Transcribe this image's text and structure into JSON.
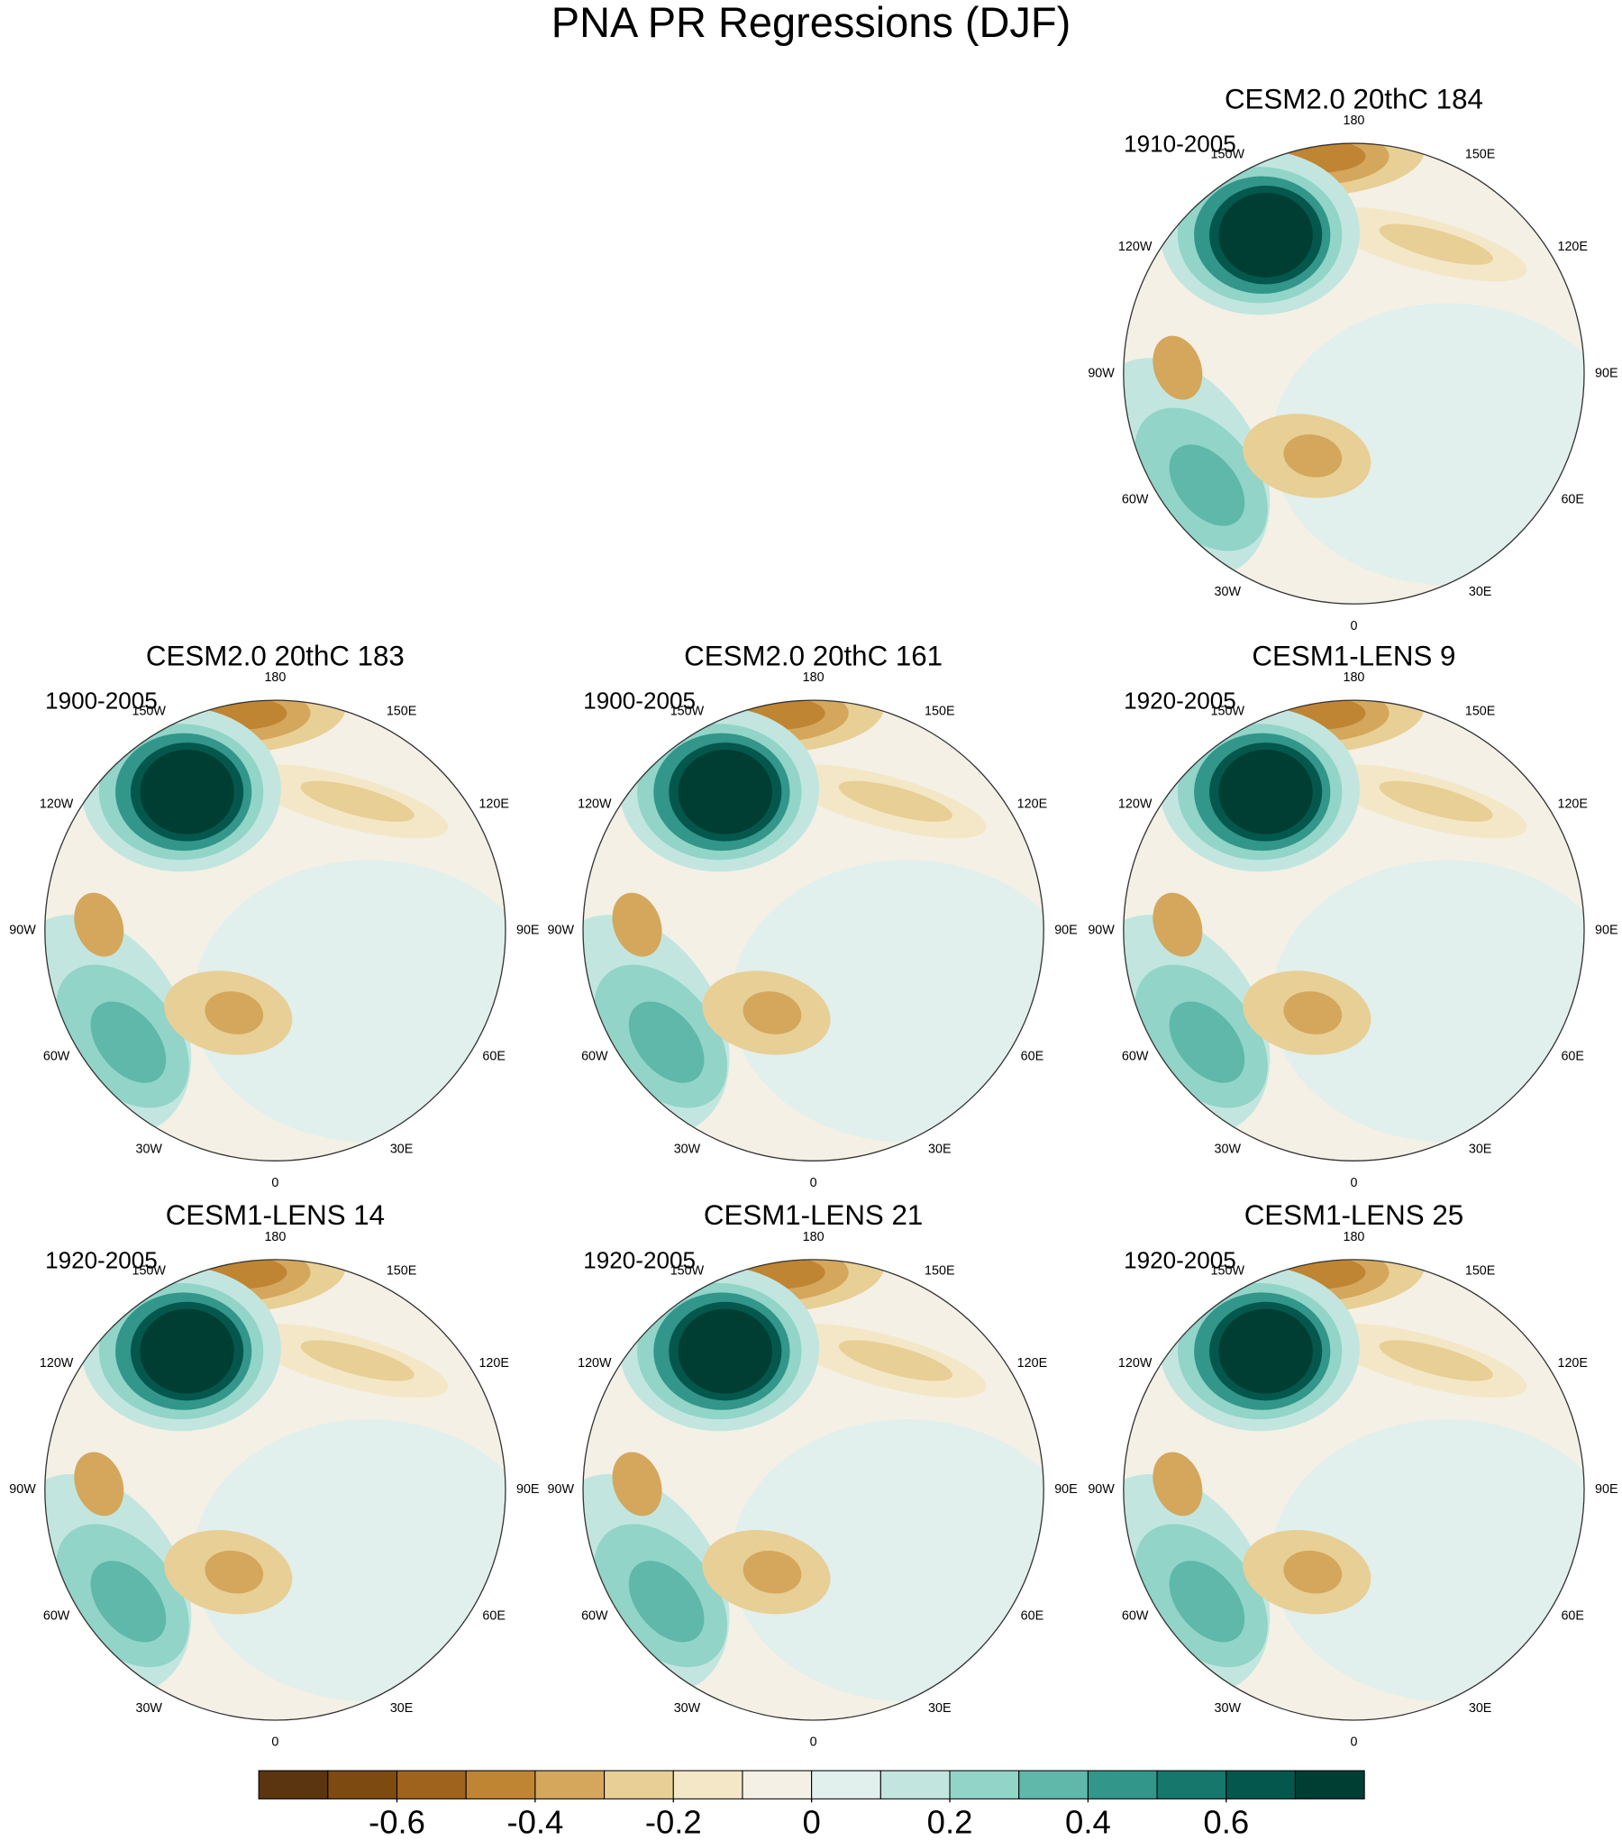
{
  "title": "PNA PR Regressions (DJF)",
  "lon_labels": [
    "180",
    "150E",
    "120E",
    "90E",
    "60E",
    "30E",
    "0",
    "30W",
    "60W",
    "90W",
    "120W",
    "150W"
  ],
  "panels": [
    {
      "title": "CESM2.0 20thC 184",
      "period": "1910-2005"
    },
    {
      "title": "CESM2.0 20thC 183",
      "period": "1900-2005"
    },
    {
      "title": "CESM2.0 20thC 161",
      "period": "1900-2005"
    },
    {
      "title": "CESM1-LENS 9",
      "period": "1920-2005"
    },
    {
      "title": "CESM1-LENS 14",
      "period": "1920-2005"
    },
    {
      "title": "CESM1-LENS 21",
      "period": "1920-2005"
    },
    {
      "title": "CESM1-LENS 25",
      "period": "1920-2005"
    }
  ],
  "colorbar": {
    "colors": [
      "#5a3510",
      "#7d4a12",
      "#a0631e",
      "#bf8533",
      "#d4a75c",
      "#e8cf95",
      "#f4e7c7",
      "#f4f0e6",
      "#e1efed",
      "#c2e6df",
      "#92d4c8",
      "#5fb8aa",
      "#32968a",
      "#16776c",
      "#04574c",
      "#003d33"
    ],
    "lim": [
      -0.8,
      0.8
    ],
    "ticks": [
      -0.6,
      -0.4,
      -0.2,
      0,
      0.2,
      0.4,
      0.6
    ]
  }
}
